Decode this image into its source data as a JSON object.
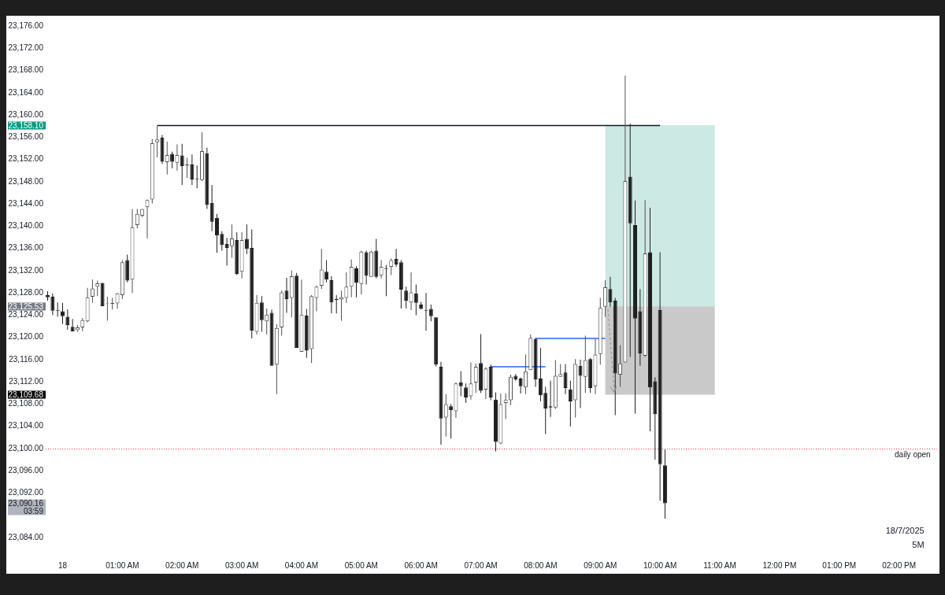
{
  "chart_data": {
    "type": "candlestick",
    "x": [
      "2025-07-17T23:45",
      "2025-07-17T23:50",
      "2025-07-17T23:55",
      "2025-07-18T00:00",
      "2025-07-18T00:05",
      "2025-07-18T00:10",
      "2025-07-18T00:15",
      "2025-07-18T00:20",
      "2025-07-18T00:25",
      "2025-07-18T00:30",
      "2025-07-18T00:35",
      "2025-07-18T00:40",
      "2025-07-18T00:45",
      "2025-07-18T00:50",
      "2025-07-18T00:55",
      "2025-07-18T01:00",
      "2025-07-18T01:05",
      "2025-07-18T01:10",
      "2025-07-18T01:15",
      "2025-07-18T01:20",
      "2025-07-18T01:25",
      "2025-07-18T01:30",
      "2025-07-18T01:35",
      "2025-07-18T01:40",
      "2025-07-18T01:45",
      "2025-07-18T01:50",
      "2025-07-18T01:55",
      "2025-07-18T02:00",
      "2025-07-18T02:05",
      "2025-07-18T02:10",
      "2025-07-18T02:15",
      "2025-07-18T02:20",
      "2025-07-18T02:25",
      "2025-07-18T02:30",
      "2025-07-18T02:35",
      "2025-07-18T02:40",
      "2025-07-18T02:45",
      "2025-07-18T02:50",
      "2025-07-18T02:55",
      "2025-07-18T03:00",
      "2025-07-18T03:05",
      "2025-07-18T03:10",
      "2025-07-18T03:15",
      "2025-07-18T03:20",
      "2025-07-18T03:25",
      "2025-07-18T03:30",
      "2025-07-18T03:35",
      "2025-07-18T03:40",
      "2025-07-18T03:45",
      "2025-07-18T03:50",
      "2025-07-18T03:55",
      "2025-07-18T04:00",
      "2025-07-18T04:05",
      "2025-07-18T04:10",
      "2025-07-18T04:15",
      "2025-07-18T04:20",
      "2025-07-18T04:25",
      "2025-07-18T04:30",
      "2025-07-18T04:35",
      "2025-07-18T04:40",
      "2025-07-18T04:45",
      "2025-07-18T04:50",
      "2025-07-18T04:55",
      "2025-07-18T05:00",
      "2025-07-18T05:05",
      "2025-07-18T05:10",
      "2025-07-18T05:15",
      "2025-07-18T05:20",
      "2025-07-18T05:25",
      "2025-07-18T05:30",
      "2025-07-18T05:35",
      "2025-07-18T05:40",
      "2025-07-18T05:45",
      "2025-07-18T05:50",
      "2025-07-18T05:55",
      "2025-07-18T06:00",
      "2025-07-18T06:05",
      "2025-07-18T06:10",
      "2025-07-18T06:15",
      "2025-07-18T06:20",
      "2025-07-18T06:25",
      "2025-07-18T06:30",
      "2025-07-18T06:35",
      "2025-07-18T06:40",
      "2025-07-18T06:45",
      "2025-07-18T06:50",
      "2025-07-18T06:55",
      "2025-07-18T07:00",
      "2025-07-18T07:05",
      "2025-07-18T07:10",
      "2025-07-18T07:15",
      "2025-07-18T07:20",
      "2025-07-18T07:25",
      "2025-07-18T07:30",
      "2025-07-18T07:35",
      "2025-07-18T07:40",
      "2025-07-18T07:45",
      "2025-07-18T07:50",
      "2025-07-18T07:55",
      "2025-07-18T08:00",
      "2025-07-18T08:05",
      "2025-07-18T08:10",
      "2025-07-18T08:15",
      "2025-07-18T08:20",
      "2025-07-18T08:25",
      "2025-07-18T08:30",
      "2025-07-18T08:35",
      "2025-07-18T08:40",
      "2025-07-18T08:45",
      "2025-07-18T08:50",
      "2025-07-18T08:55",
      "2025-07-18T09:00",
      "2025-07-18T09:05",
      "2025-07-18T09:10",
      "2025-07-18T09:15",
      "2025-07-18T09:20",
      "2025-07-18T09:25",
      "2025-07-18T09:30",
      "2025-07-18T09:35",
      "2025-07-18T09:40",
      "2025-07-18T09:45",
      "2025-07-18T09:50",
      "2025-07-18T09:55",
      "2025-07-18T10:00",
      "2025-07-18T10:05"
    ],
    "ohlc": [
      [
        23127.6,
        23128.3,
        23126.6,
        23127.2
      ],
      [
        23127.3,
        23127.9,
        23124.0,
        23124.8
      ],
      [
        23124.9,
        23126.3,
        23123.7,
        23124.8
      ],
      [
        23124.7,
        23126.2,
        23122.4,
        23123.8
      ],
      [
        23123.7,
        23125.0,
        23121.4,
        23122.2
      ],
      [
        23121.9,
        23123.3,
        23121.1,
        23121.1
      ],
      [
        23121.3,
        23122.2,
        23121.0,
        23121.8
      ],
      [
        23121.8,
        23123.5,
        23121.1,
        23123.1
      ],
      [
        23122.9,
        23128.9,
        23122.7,
        23127.2
      ],
      [
        23127.3,
        23130.4,
        23126.2,
        23128.8
      ],
      [
        23129.1,
        23130.2,
        23127.4,
        23129.7
      ],
      [
        23129.8,
        23129.8,
        23125.6,
        23125.6
      ],
      [
        23126.0,
        23127.3,
        23123.0,
        23126.1
      ],
      [
        23126.0,
        23127.1,
        23125.0,
        23126.2
      ],
      [
        23126.1,
        23128.0,
        23125.2,
        23127.9
      ],
      [
        23127.6,
        23133.9,
        23126.9,
        23133.5
      ],
      [
        23133.9,
        23134.9,
        23129.9,
        23130.2
      ],
      [
        23130.4,
        23143.1,
        23128.0,
        23139.8
      ],
      [
        23140.2,
        23143.1,
        23139.6,
        23142.2
      ],
      [
        23141.9,
        23143.1,
        23141.6,
        23143.1
      ],
      [
        23143.4,
        23144.8,
        23137.8,
        23144.7
      ],
      [
        23144.8,
        23155.7,
        23144.1,
        23154.9
      ],
      [
        23155.1,
        23158.1,
        23152.4,
        23155.6
      ],
      [
        23155.9,
        23156.4,
        23151.2,
        23151.6
      ],
      [
        23151.5,
        23155.2,
        23149.3,
        23152.8
      ],
      [
        23153.0,
        23153.4,
        23150.4,
        23151.6
      ],
      [
        23151.4,
        23154.7,
        23150.0,
        23152.8
      ],
      [
        23152.7,
        23154.8,
        23147.4,
        23150.8
      ],
      [
        23150.9,
        23152.3,
        23148.7,
        23151.1
      ],
      [
        23151.1,
        23152.9,
        23147.4,
        23148.4
      ],
      [
        23148.5,
        23150.9,
        23146.8,
        23148.4
      ],
      [
        23148.3,
        23156.9,
        23148.1,
        23153.5
      ],
      [
        23153.1,
        23154.1,
        23143.1,
        23143.8
      ],
      [
        23144.2,
        23147.4,
        23139.1,
        23140.8
      ],
      [
        23141.5,
        23142.2,
        23135.2,
        23138.3
      ],
      [
        23138.6,
        23139.1,
        23135.6,
        23136.6
      ],
      [
        23136.8,
        23137.9,
        23132.9,
        23136.1
      ],
      [
        23136.4,
        23140.3,
        23134.3,
        23137.8
      ],
      [
        23137.5,
        23138.9,
        23131.2,
        23131.4
      ],
      [
        23131.8,
        23138.9,
        23130.6,
        23137.5
      ],
      [
        23137.7,
        23140.3,
        23135.0,
        23135.9
      ],
      [
        23136.1,
        23139.4,
        23119.8,
        23121.2
      ],
      [
        23121.0,
        23127.6,
        23120.5,
        23126.2
      ],
      [
        23126.3,
        23127.4,
        23121.0,
        23123.1
      ],
      [
        23122.9,
        23125.2,
        23120.5,
        23124.1
      ],
      [
        23124.4,
        23125.0,
        23114.9,
        23114.9
      ],
      [
        23115.1,
        23122.4,
        23109.8,
        23121.7
      ],
      [
        23121.8,
        23128.4,
        23120.3,
        23128.1
      ],
      [
        23128.4,
        23130.7,
        23124.4,
        23126.9
      ],
      [
        23127.1,
        23132.0,
        23123.6,
        23131.0
      ],
      [
        23131.1,
        23131.6,
        23118.1,
        23118.1
      ],
      [
        23117.4,
        23130.4,
        23117.4,
        23124.1
      ],
      [
        23123.9,
        23125.1,
        23116.3,
        23117.6
      ],
      [
        23117.9,
        23127.6,
        23115.4,
        23127.4
      ],
      [
        23127.1,
        23129.3,
        23124.7,
        23129.1
      ],
      [
        23129.3,
        23135.9,
        23128.7,
        23132.2
      ],
      [
        23131.8,
        23133.9,
        23129.9,
        23130.4
      ],
      [
        23130.3,
        23131.0,
        23124.3,
        23126.3
      ],
      [
        23126.9,
        23127.6,
        23124.3,
        23126.7
      ],
      [
        23126.8,
        23128.4,
        23123.0,
        23127.2
      ],
      [
        23127.1,
        23131.7,
        23126.2,
        23129.1
      ],
      [
        23129.1,
        23134.0,
        23127.2,
        23132.7
      ],
      [
        23132.4,
        23132.8,
        23127.2,
        23129.8
      ],
      [
        23129.6,
        23135.6,
        23127.7,
        23135.4
      ],
      [
        23135.3,
        23135.6,
        23129.5,
        23131.1
      ],
      [
        23130.9,
        23135.6,
        23130.9,
        23135.4
      ],
      [
        23135.6,
        23137.7,
        23130.6,
        23130.9
      ],
      [
        23131.1,
        23133.9,
        23130.6,
        23132.7
      ],
      [
        23132.4,
        23133.0,
        23127.4,
        23132.3
      ],
      [
        23132.7,
        23134.2,
        23131.2,
        23133.9
      ],
      [
        23134.1,
        23135.9,
        23132.7,
        23133.1
      ],
      [
        23133.5,
        23133.9,
        23125.2,
        23128.6
      ],
      [
        23128.4,
        23129.1,
        23125.2,
        23126.6
      ],
      [
        23126.3,
        23131.7,
        23124.9,
        23128.1
      ],
      [
        23127.9,
        23129.5,
        23124.0,
        23126.2
      ],
      [
        23125.9,
        23126.4,
        23125.0,
        23125.1
      ],
      [
        23124.9,
        23128.0,
        23121.2,
        23124.8
      ],
      [
        23125.1,
        23125.9,
        23122.9,
        23123.8
      ],
      [
        23123.6,
        23123.6,
        23114.8,
        23115.1
      ],
      [
        23114.7,
        23115.6,
        23100.7,
        23105.4
      ],
      [
        23105.6,
        23109.8,
        23102.1,
        23108.0
      ],
      [
        23107.6,
        23108.0,
        23101.8,
        23106.9
      ],
      [
        23106.7,
        23111.9,
        23105.5,
        23111.7
      ],
      [
        23111.9,
        23113.9,
        23109.4,
        23111.2
      ],
      [
        23111.0,
        23111.7,
        23108.2,
        23109.2
      ],
      [
        23109.4,
        23115.5,
        23108.8,
        23111.7
      ],
      [
        23111.9,
        23115.3,
        23110.0,
        23114.7
      ],
      [
        23115.4,
        23120.6,
        23110.0,
        23110.4
      ],
      [
        23110.6,
        23114.6,
        23108.9,
        23114.4
      ],
      [
        23114.7,
        23115.1,
        23108.7,
        23109.2
      ],
      [
        23108.8,
        23110.1,
        23099.5,
        23101.2
      ],
      [
        23100.9,
        23109.9,
        23100.8,
        23108.0
      ],
      [
        23108.2,
        23109.9,
        23105.3,
        23108.8
      ],
      [
        23108.7,
        23113.3,
        23107.8,
        23112.9
      ],
      [
        23113.1,
        23113.4,
        23112.2,
        23112.4
      ],
      [
        23112.6,
        23112.8,
        23109.9,
        23111.2
      ],
      [
        23111.0,
        23116.9,
        23109.8,
        23113.9
      ],
      [
        23114.1,
        23120.5,
        23114.1,
        23119.9
      ],
      [
        23119.7,
        23119.9,
        23111.1,
        23112.4
      ],
      [
        23112.6,
        23118.1,
        23108.5,
        23109.6
      ],
      [
        23110.0,
        23111.1,
        23102.6,
        23107.2
      ],
      [
        23107.6,
        23112.2,
        23105.7,
        23107.4
      ],
      [
        23107.4,
        23115.9,
        23107.1,
        23113.1
      ],
      [
        23112.9,
        23115.2,
        23112.9,
        23113.4
      ],
      [
        23113.7,
        23115.2,
        23109.8,
        23110.9
      ],
      [
        23110.6,
        23112.2,
        23104.0,
        23108.5
      ],
      [
        23108.7,
        23116.1,
        23105.6,
        23115.2
      ],
      [
        23114.9,
        23116.0,
        23107.3,
        23113.1
      ],
      [
        23112.9,
        23120.3,
        23110.0,
        23115.9
      ],
      [
        23116.1,
        23116.3,
        23110.0,
        23110.9
      ],
      [
        23111.2,
        23119.7,
        23109.8,
        23116.9
      ],
      [
        23117.0,
        23127.1,
        23115.1,
        23125.3
      ],
      [
        23125.5,
        23130.3,
        23123.7,
        23129.0
      ],
      [
        23128.7,
        23130.9,
        23125.5,
        23126.3
      ],
      [
        23126.6,
        23127.1,
        23106.0,
        23113.5
      ],
      [
        23113.3,
        23118.6,
        23111.1,
        23115.3
      ],
      [
        23115.5,
        23167.1,
        23115.5,
        23148.1
      ],
      [
        23148.9,
        23158.4,
        23116.5,
        23140.5
      ],
      [
        23140.2,
        23144.6,
        23106.3,
        23123.4
      ],
      [
        23124.7,
        23128.7,
        23114.9,
        23117.1
      ],
      [
        23116.7,
        23144.7,
        23116.5,
        23135.1
      ],
      [
        23135.3,
        23143.3,
        23103.1,
        23111.0
      ],
      [
        23112.1,
        23112.8,
        23098.0,
        23106.2
      ],
      [
        23124.9,
        23135.3,
        23090.6,
        23097.2
      ],
      [
        23097.0,
        23099.8,
        23087.4,
        23090.16
      ]
    ],
    "colors": [
      "#1f1f1f",
      "#1f1f1f",
      "#1f1f1f",
      "#1f1f1f",
      "#1f1f1f",
      "#1f1f1f",
      "#505050",
      "#505050",
      "#505050",
      "#505050",
      "#505050",
      "#1f1f1f",
      "#505050",
      "#505050",
      "#505050",
      "#505050",
      "#1f1f1f",
      "#505050",
      "#505050",
      "#505050",
      "#505050",
      "#505050",
      "#505050",
      "#1f1f1f",
      "#505050",
      "#1f1f1f",
      "#505050",
      "#1f1f1f",
      "#505050",
      "#1f1f1f",
      "#1f1f1f",
      "#505050",
      "#1f1f1f",
      "#1f1f1f",
      "#1f1f1f",
      "#1f1f1f",
      "#1f1f1f",
      "#505050",
      "#1f1f1f",
      "#505050",
      "#1f1f1f",
      "#1f1f1f",
      "#505050",
      "#1f1f1f",
      "#505050",
      "#1f1f1f",
      "#505050",
      "#505050",
      "#1f1f1f",
      "#505050",
      "#1f1f1f",
      "#505050",
      "#1f1f1f",
      "#505050",
      "#505050",
      "#505050",
      "#1f1f1f",
      "#1f1f1f",
      "#1f1f1f",
      "#505050",
      "#505050",
      "#505050",
      "#1f1f1f",
      "#505050",
      "#1f1f1f",
      "#505050",
      "#1f1f1f",
      "#505050",
      "#1f1f1f",
      "#505050",
      "#1f1f1f",
      "#1f1f1f",
      "#1f1f1f",
      "#505050",
      "#1f1f1f",
      "#1f1f1f",
      "#1f1f1f",
      "#1f1f1f",
      "#1f1f1f",
      "#1f1f1f",
      "#505050",
      "#1f1f1f",
      "#505050",
      "#1f1f1f",
      "#1f1f1f",
      "#505050",
      "#505050",
      "#1f1f1f",
      "#505050",
      "#1f1f1f",
      "#1f1f1f",
      "#505050",
      "#505050",
      "#505050",
      "#1f1f1f",
      "#1f1f1f",
      "#505050",
      "#505050",
      "#1f1f1f",
      "#1f1f1f",
      "#1f1f1f",
      "#1f1f1f",
      "#505050",
      "#505050",
      "#1f1f1f",
      "#1f1f1f",
      "#505050",
      "#1f1f1f",
      "#505050",
      "#1f1f1f",
      "#505050",
      "#505050",
      "#505050",
      "#1f1f1f",
      "#1f1f1f",
      "#505050",
      "#505050",
      "#1f1f1f",
      "#1f1f1f",
      "#1f1f1f",
      "#505050",
      "#1f1f1f",
      "#1f1f1f",
      "#1f1f1f",
      "#1f1f1f"
    ],
    "series": [
      {
        "type": "line",
        "x": [
          "2025-07-18T09:05",
          "2025-07-18T10:55"
        ],
        "values": [
          23158.1,
          23158.1
        ],
        "lower": [
          23125.5,
          23125.5
        ],
        "upper": [
          23158.1,
          23158.1
        ],
        "color": "#cde9e4"
      },
      {
        "type": "line",
        "x": [
          "2025-07-18T09:05",
          "2025-07-18T10:55"
        ],
        "values": [
          23125.5,
          23125.5
        ],
        "lower": [
          23109.7,
          23109.7
        ],
        "upper": [
          23125.5,
          23125.5
        ],
        "color": "#c9c9c9"
      },
      {
        "type": "line",
        "x": [
          "2025-07-18T01:35",
          "2025-07-18T10:00"
        ],
        "values": [
          23158.1,
          23158.1
        ],
        "color": "#131722"
      },
      {
        "type": "line",
        "x": [
          "2025-07-18T07:10",
          "2025-07-18T08:05"
        ],
        "values": [
          23114.7,
          23114.7
        ],
        "color": "#2962ff"
      },
      {
        "type": "line",
        "x": [
          "2025-07-18T07:55",
          "2025-07-18T09:05"
        ],
        "values": [
          23119.8,
          23119.8
        ],
        "color": "#2962ff"
      }
    ],
    "ref_lines": [
      {
        "axis": "y",
        "value": 23100,
        "label": "daily open",
        "color": "#f23645",
        "line_style": "dotted"
      }
    ],
    "annotations": [
      "23,158.10",
      "23,125.53",
      "23,109.68",
      "23,090.16\n03:59",
      "18/7/2025",
      "5M"
    ],
    "xlim": [
      "2025-07-17T23:43",
      "2025-07-18T14:38"
    ],
    "xticks": [
      {
        "value": "2025-07-18T00:00",
        "label": "18"
      },
      {
        "value": "2025-07-18T01:00",
        "label": "01:00 AM"
      },
      {
        "value": "2025-07-18T02:00",
        "label": "02:00 AM"
      },
      {
        "value": "2025-07-18T03:00",
        "label": "03:00 AM"
      },
      {
        "value": "2025-07-18T04:00",
        "label": "04:00 AM"
      },
      {
        "value": "2025-07-18T05:00",
        "label": "05:00 AM"
      },
      {
        "value": "2025-07-18T06:00",
        "label": "06:00 AM"
      },
      {
        "value": "2025-07-18T07:00",
        "label": "07:00 AM"
      },
      {
        "value": "2025-07-18T08:00",
        "label": "08:00 AM"
      },
      {
        "value": "2025-07-18T09:00",
        "label": "09:00 AM"
      },
      {
        "value": "2025-07-18T10:00",
        "label": "10:00 AM"
      },
      {
        "value": "2025-07-18T11:00",
        "label": "11:00 AM"
      },
      {
        "value": "2025-07-18T12:00",
        "label": "12:00 PM"
      },
      {
        "value": "2025-07-18T13:00",
        "label": "01:00 PM"
      },
      {
        "value": "2025-07-18T14:00",
        "label": "02:00 PM"
      }
    ],
    "ylim": [
      23084,
      23176
    ],
    "yticks": [
      {
        "value": 23084,
        "label": "23,084.00"
      },
      {
        "value": 23092,
        "label": "23,092.00"
      },
      {
        "value": 23096,
        "label": "23,096.00"
      },
      {
        "value": 23100,
        "label": "23,100.00"
      },
      {
        "value": 23104,
        "label": "23,104.00"
      },
      {
        "value": 23108,
        "label": "23,108.00"
      },
      {
        "value": 23112,
        "label": "23,112.00"
      },
      {
        "value": 23116,
        "label": "23,116.00"
      },
      {
        "value": 23120,
        "label": "23,120.00"
      },
      {
        "value": 23124,
        "label": "23,124.00"
      },
      {
        "value": 23128,
        "label": "23,128.00"
      },
      {
        "value": 23132,
        "label": "23,132.00"
      },
      {
        "value": 23136,
        "label": "23,136.00"
      },
      {
        "value": 23140,
        "label": "23,140.00"
      },
      {
        "value": 23144,
        "label": "23,144.00"
      },
      {
        "value": 23148,
        "label": "23,148.00"
      },
      {
        "value": 23152,
        "label": "23,152.00"
      },
      {
        "value": 23156,
        "label": "23,156.00"
      },
      {
        "value": 23160,
        "label": "23,160.00"
      },
      {
        "value": 23164,
        "label": "23,164.00"
      },
      {
        "value": 23168,
        "label": "23,168.00"
      },
      {
        "value": 23172,
        "label": "23,172.00"
      },
      {
        "value": 23176,
        "label": "23,176.00"
      }
    ]
  }
}
